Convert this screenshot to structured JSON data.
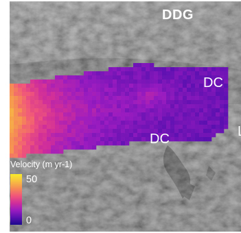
{
  "map": {
    "title": "DDG",
    "labels": {
      "dc_upper": "DC",
      "dc_lower": "DC",
      "edge": "L"
    }
  },
  "legend": {
    "title": "Velocity (m yr-1)",
    "max_label": "50",
    "min_label": "0",
    "range": [
      0,
      50
    ],
    "colors": [
      "#1a0a8c",
      "#5a10b0",
      "#9a1cc0",
      "#d02e9a",
      "#f0567a",
      "#f58a56",
      "#f8c040",
      "#f8ec2a"
    ]
  },
  "colors": {
    "hillshade_base": "#5a5a5a",
    "valley_floor": "#4a4a4a",
    "shadow": "#141414",
    "label_text": "#ffffff"
  }
}
